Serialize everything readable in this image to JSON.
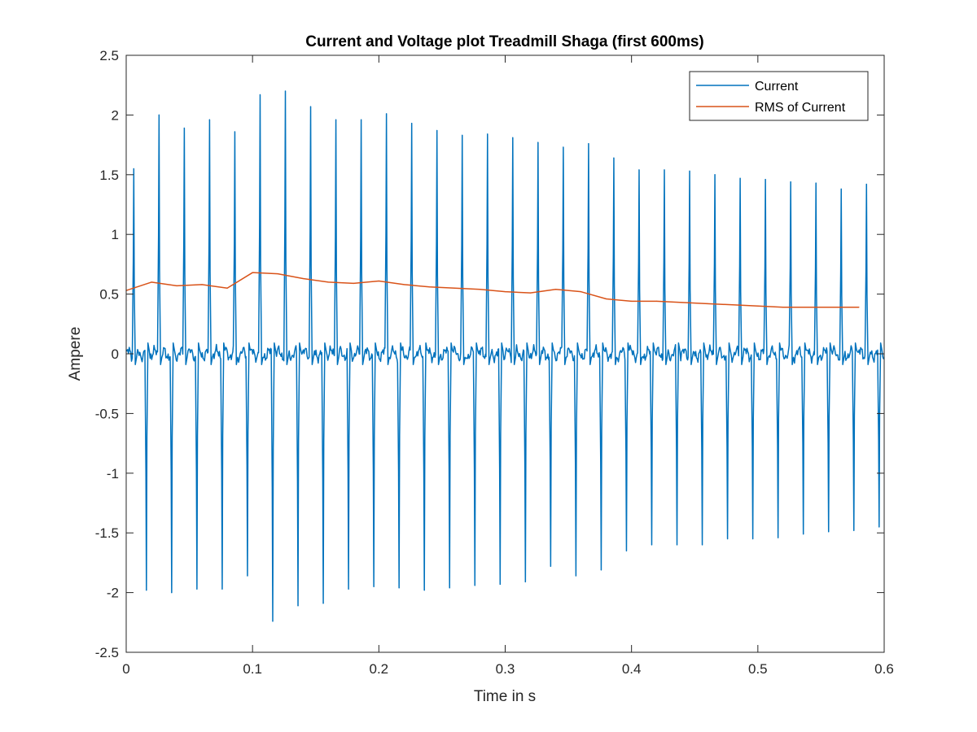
{
  "chart_data": {
    "type": "line",
    "title": "Current and Voltage plot Treadmill Shaga (first 600ms)",
    "xlabel": "Time in s",
    "ylabel": "Ampere",
    "xlim": [
      0,
      0.6
    ],
    "ylim": [
      -2.5,
      2.5
    ],
    "xticks": [
      0,
      0.1,
      0.2,
      0.3,
      0.4,
      0.5,
      0.6
    ],
    "xtick_labels": [
      "0",
      "0.1",
      "0.2",
      "0.3",
      "0.4",
      "0.5",
      "0.6"
    ],
    "yticks": [
      -2.5,
      -2,
      -1.5,
      -1,
      -0.5,
      0,
      0.5,
      1,
      1.5,
      2,
      2.5
    ],
    "ytick_labels": [
      "-2.5",
      "-2",
      "-1.5",
      "-1",
      "-0.5",
      "0",
      "0.5",
      "1",
      "1.5",
      "2",
      "2.5"
    ],
    "grid": false,
    "legend_position": "top-right",
    "series": [
      {
        "name": "Current",
        "color": "#0072BD",
        "style": "spike train",
        "positive_peaks": {
          "x": [
            0.006,
            0.026,
            0.046,
            0.066,
            0.086,
            0.106,
            0.126,
            0.146,
            0.166,
            0.186,
            0.206,
            0.226,
            0.246,
            0.266,
            0.286,
            0.306,
            0.326,
            0.346,
            0.366,
            0.386,
            0.406,
            0.426,
            0.446,
            0.466,
            0.486,
            0.506,
            0.526,
            0.546,
            0.566,
            0.586
          ],
          "y": [
            1.55,
            2.0,
            1.89,
            1.96,
            1.86,
            2.17,
            2.2,
            2.07,
            1.96,
            1.96,
            2.01,
            1.93,
            1.87,
            1.83,
            1.84,
            1.81,
            1.77,
            1.73,
            1.76,
            1.64,
            1.54,
            1.54,
            1.53,
            1.5,
            1.47,
            1.46,
            1.44,
            1.43,
            1.38,
            1.42
          ]
        },
        "negative_peaks": {
          "x": [
            0.016,
            0.036,
            0.056,
            0.076,
            0.096,
            0.116,
            0.136,
            0.156,
            0.176,
            0.196,
            0.216,
            0.236,
            0.256,
            0.276,
            0.296,
            0.316,
            0.336,
            0.356,
            0.376,
            0.396,
            0.416,
            0.436,
            0.456,
            0.476,
            0.496,
            0.516,
            0.536,
            0.556,
            0.576,
            0.596
          ],
          "y": [
            -1.98,
            -2.0,
            -1.97,
            -1.97,
            -1.86,
            -2.24,
            -2.11,
            -2.09,
            -1.97,
            -1.95,
            -1.96,
            -1.98,
            -1.96,
            -1.94,
            -1.93,
            -1.91,
            -1.78,
            -1.86,
            -1.81,
            -1.65,
            -1.6,
            -1.6,
            -1.6,
            -1.55,
            -1.55,
            -1.54,
            -1.51,
            -1.49,
            -1.48,
            -1.45
          ]
        }
      },
      {
        "name": "RMS of Current",
        "color": "#D95319",
        "x": [
          0,
          0.02,
          0.04,
          0.06,
          0.08,
          0.1,
          0.12,
          0.14,
          0.16,
          0.18,
          0.2,
          0.22,
          0.24,
          0.26,
          0.28,
          0.3,
          0.32,
          0.34,
          0.36,
          0.38,
          0.4,
          0.42,
          0.44,
          0.46,
          0.48,
          0.5,
          0.52,
          0.54,
          0.56,
          0.58
        ],
        "y": [
          0.53,
          0.6,
          0.57,
          0.58,
          0.55,
          0.68,
          0.67,
          0.63,
          0.6,
          0.59,
          0.61,
          0.58,
          0.56,
          0.55,
          0.54,
          0.52,
          0.51,
          0.54,
          0.52,
          0.46,
          0.44,
          0.44,
          0.43,
          0.42,
          0.41,
          0.4,
          0.39,
          0.39,
          0.39,
          0.39
        ]
      }
    ]
  }
}
